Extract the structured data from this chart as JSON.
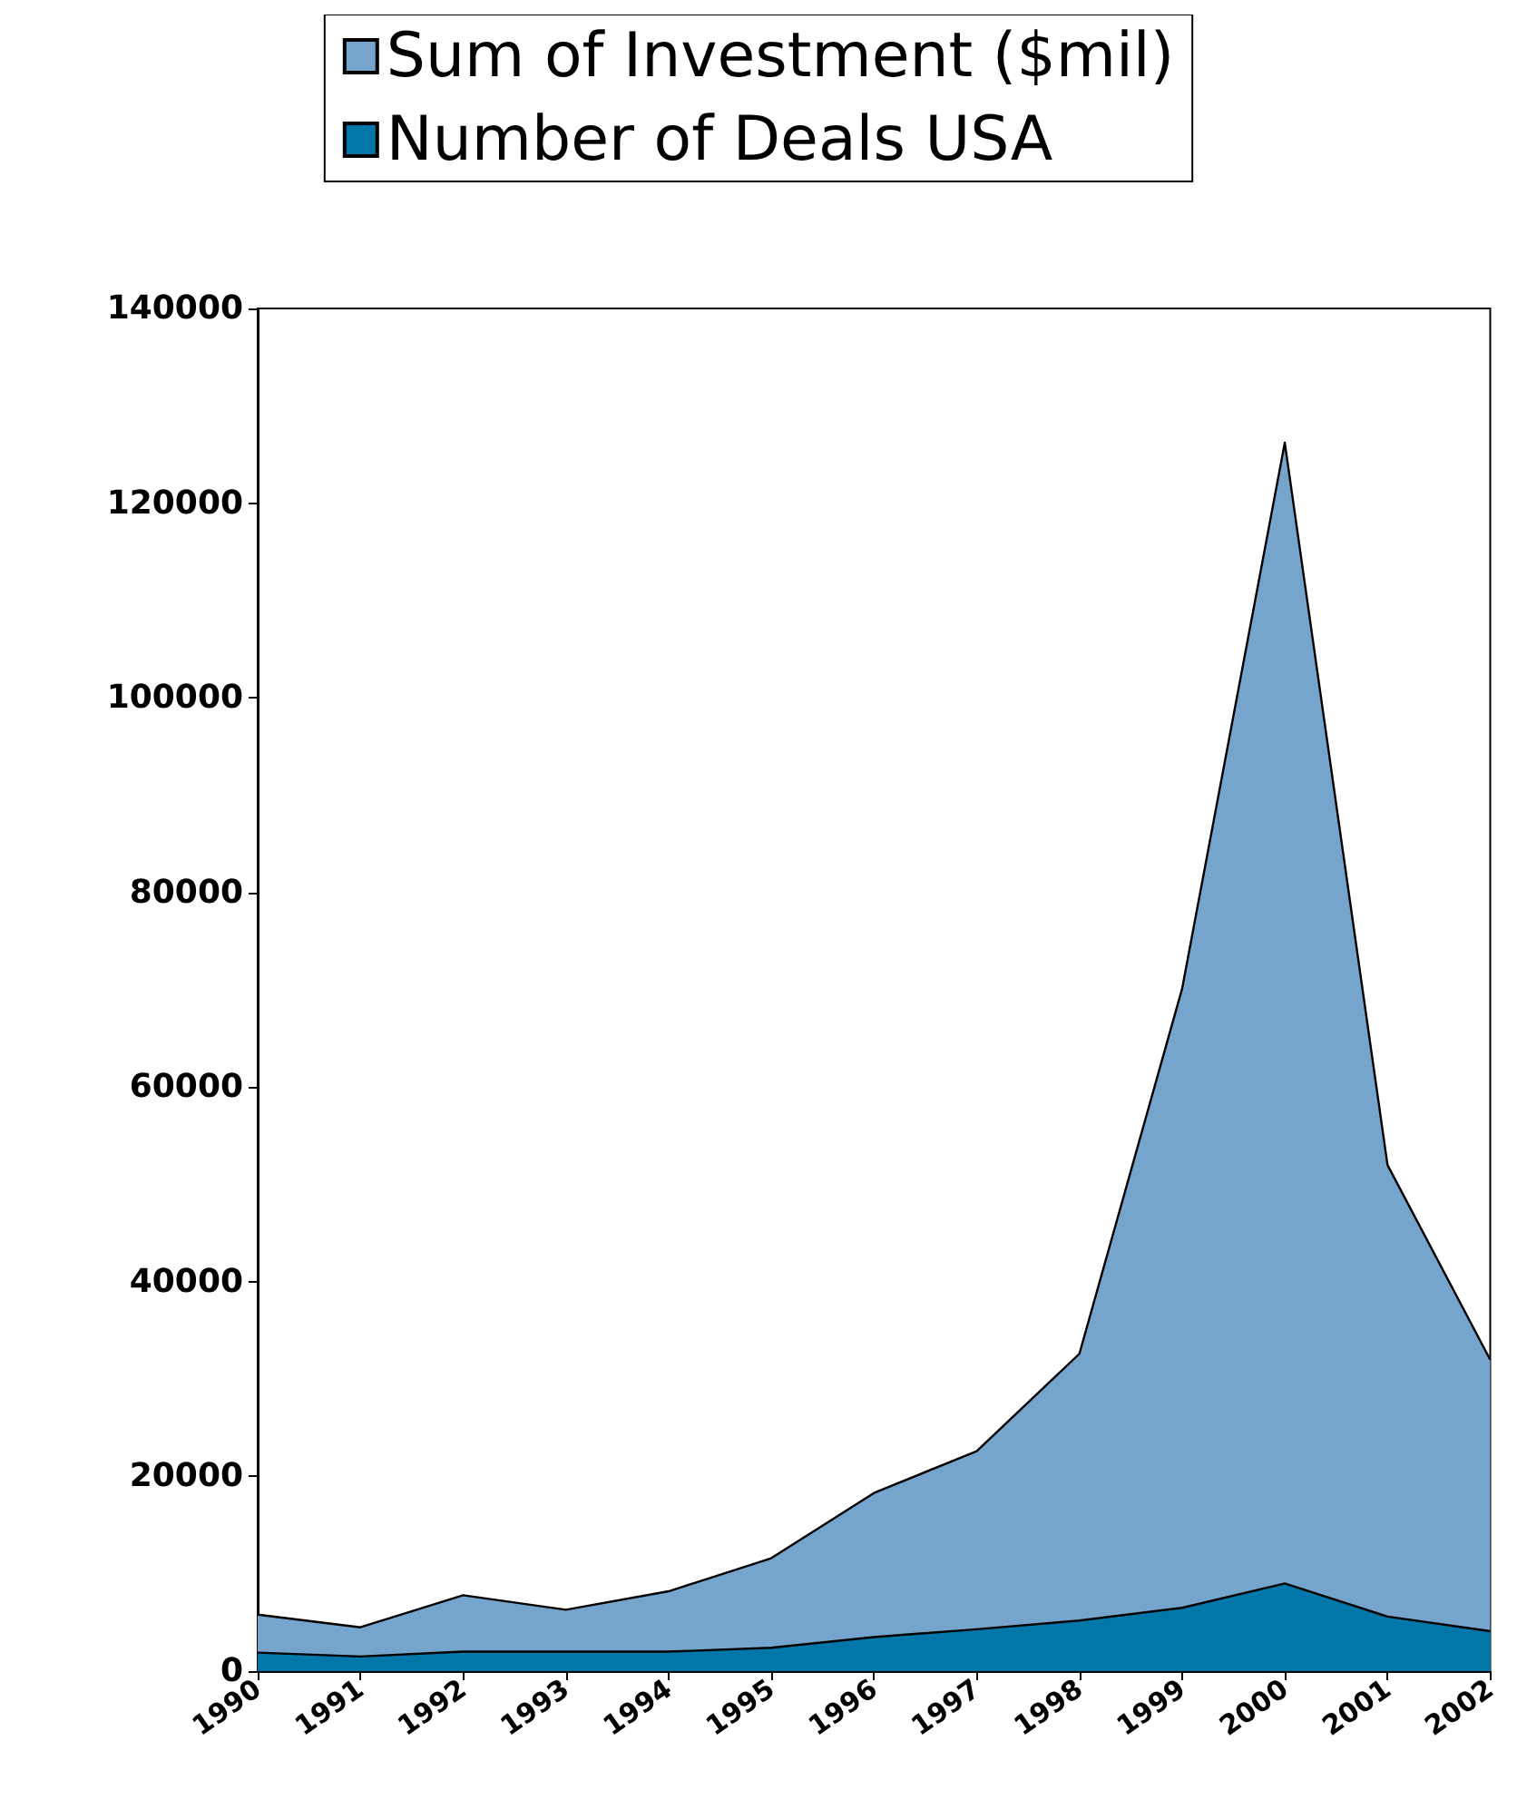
{
  "chart_data": {
    "type": "area",
    "categories": [
      "1990",
      "1991",
      "1992",
      "1993",
      "1994",
      "1995",
      "1996",
      "1997",
      "1998",
      "1999",
      "2000",
      "2001",
      "2002"
    ],
    "series": [
      {
        "name": "Sum of Investment ($mil)",
        "color": "#75a5cd",
        "values": [
          5800,
          4500,
          7800,
          6300,
          8200,
          11600,
          18300,
          22600,
          32600,
          70100,
          126200,
          52000,
          32000
        ]
      },
      {
        "name": "Number of Deals USA",
        "color": "#0077a8",
        "values": [
          1900,
          1500,
          2000,
          2000,
          2000,
          2400,
          3500,
          4300,
          5200,
          6500,
          9000,
          5600,
          4100
        ]
      }
    ],
    "ylim": [
      0,
      140000
    ],
    "yticks": [
      0,
      20000,
      40000,
      60000,
      80000,
      100000,
      120000,
      140000
    ],
    "grid": false,
    "legend": "top"
  }
}
